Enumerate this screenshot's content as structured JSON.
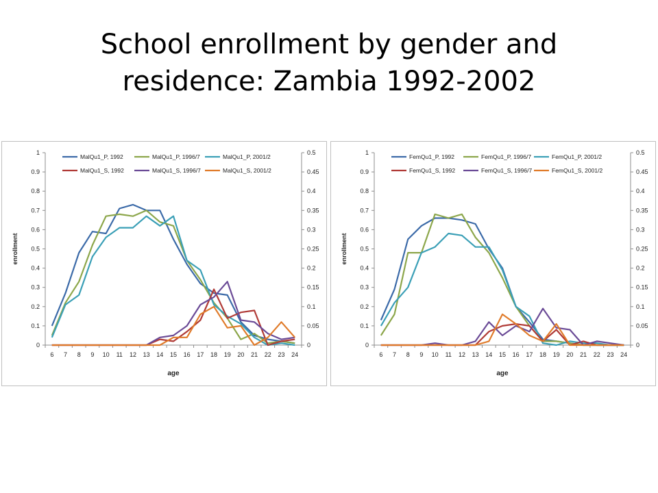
{
  "title": {
    "line1": "School enrollment by gender and",
    "line2": "residence: Zambia 1992-2002"
  },
  "chart_data": [
    {
      "type": "line",
      "xlabel": "age",
      "ylabel": "enrollment",
      "x": [
        6,
        7,
        8,
        9,
        10,
        11,
        12,
        13,
        14,
        15,
        16,
        17,
        18,
        19,
        20,
        21,
        22,
        23,
        24
      ],
      "ylim": [
        0,
        1
      ],
      "y2lim": [
        0,
        0.5
      ],
      "yticks": [
        "0",
        "0.1",
        "0.2",
        "0.3",
        "0.4",
        "0.5",
        "0.6",
        "0.7",
        "0.8",
        "0.9",
        "1"
      ],
      "y2ticks": [
        "0",
        "0.05",
        "0.1",
        "0.15",
        "0.2",
        "0.25",
        "0.3",
        "0.35",
        "0.4",
        "0.45",
        "0.5"
      ],
      "legend": "top",
      "series": [
        {
          "name": "MalQu1_P, 1992",
          "axis": "left",
          "color": "#3b6aa8",
          "values": [
            0.1,
            0.27,
            0.48,
            0.59,
            0.58,
            0.71,
            0.73,
            0.7,
            0.7,
            0.55,
            0.42,
            0.32,
            0.27,
            0.26,
            0.12,
            0.05,
            0.03,
            0.02,
            0.01
          ]
        },
        {
          "name": "MalQu1_P, 1996/7",
          "axis": "left",
          "color": "#8ca64a",
          "values": [
            0.05,
            0.22,
            0.33,
            0.52,
            0.67,
            0.68,
            0.67,
            0.7,
            0.64,
            0.62,
            0.44,
            0.34,
            0.22,
            0.14,
            0.03,
            0.06,
            0.01,
            0.02,
            0.01
          ]
        },
        {
          "name": "MalQu1_P, 2001/2",
          "axis": "left",
          "color": "#3a9fb6",
          "values": [
            0.04,
            0.21,
            0.26,
            0.46,
            0.56,
            0.61,
            0.61,
            0.67,
            0.62,
            0.67,
            0.44,
            0.39,
            0.21,
            0.15,
            0.11,
            0.04,
            0.0,
            0.01,
            0.0
          ]
        },
        {
          "name": "MalQu1_S, 1992",
          "axis": "right",
          "color": "#b03a36",
          "values": [
            0,
            0,
            0,
            0,
            0,
            0,
            0,
            0,
            0.015,
            0.01,
            0.035,
            0.065,
            0.145,
            0.07,
            0.085,
            0.09,
            0.0,
            0.01,
            0.015
          ]
        },
        {
          "name": "MalQu1_S, 1996/7",
          "axis": "right",
          "color": "#6a4a96",
          "values": [
            0,
            0,
            0,
            0,
            0,
            0,
            0,
            0,
            0.02,
            0.025,
            0.05,
            0.105,
            0.125,
            0.165,
            0.065,
            0.06,
            0.03,
            0.015,
            0.02
          ]
        },
        {
          "name": "MalQu1_S, 2001/2",
          "axis": "right",
          "color": "#e07b2a",
          "values": [
            0,
            0,
            0,
            0,
            0,
            0,
            0,
            0,
            0.0,
            0.02,
            0.02,
            0.08,
            0.1,
            0.045,
            0.05,
            0.0,
            0.02,
            0.06,
            0.02
          ]
        }
      ]
    },
    {
      "type": "line",
      "xlabel": "age",
      "ylabel": "enrollment",
      "x": [
        6,
        7,
        8,
        9,
        10,
        11,
        12,
        13,
        14,
        15,
        16,
        17,
        18,
        19,
        20,
        21,
        22,
        23,
        24
      ],
      "ylim": [
        0,
        1
      ],
      "y2lim": [
        0,
        0.5
      ],
      "yticks": [
        "0",
        "0.1",
        "0.2",
        "0.3",
        "0.4",
        "0.5",
        "0.6",
        "0.7",
        "0.8",
        "0.9",
        "1"
      ],
      "y2ticks": [
        "0",
        "0.05",
        "0.1",
        "0.15",
        "0.2",
        "0.25",
        "0.3",
        "0.35",
        "0.4",
        "0.45",
        "0.5"
      ],
      "legend": "top",
      "series": [
        {
          "name": "FemQu1_P, 1992",
          "axis": "left",
          "color": "#3b6aa8",
          "values": [
            0.13,
            0.29,
            0.55,
            0.62,
            0.66,
            0.66,
            0.65,
            0.63,
            0.5,
            0.4,
            0.2,
            0.12,
            0.03,
            0.02,
            0.01,
            0.0,
            0.0,
            0.0,
            0.0
          ]
        },
        {
          "name": "FemQu1_P, 1996/7",
          "axis": "left",
          "color": "#8ca64a",
          "values": [
            0.05,
            0.16,
            0.48,
            0.48,
            0.68,
            0.66,
            0.68,
            0.56,
            0.48,
            0.35,
            0.2,
            0.1,
            0.02,
            0.02,
            0.01,
            0.0,
            0.0,
            0.0,
            0.0
          ]
        },
        {
          "name": "FemQu1_P, 2001/2",
          "axis": "left",
          "color": "#3a9fb6",
          "values": [
            0.1,
            0.22,
            0.3,
            0.48,
            0.51,
            0.58,
            0.57,
            0.51,
            0.51,
            0.39,
            0.2,
            0.15,
            0.01,
            0.0,
            0.02,
            0.01,
            0.01,
            0.0,
            0.0
          ]
        },
        {
          "name": "FemQu1_S, 1992",
          "axis": "right",
          "color": "#b03a36",
          "values": [
            0,
            0,
            0,
            0,
            0.0,
            0.0,
            0.0,
            0.0,
            0.035,
            0.05,
            0.055,
            0.05,
            0.01,
            0.04,
            0.0,
            0.01,
            0.0,
            0.0,
            0.0
          ]
        },
        {
          "name": "FemQu1_S, 1996/7",
          "axis": "right",
          "color": "#6a4a96",
          "values": [
            0,
            0,
            0,
            0,
            0.005,
            0.0,
            0.0,
            0.01,
            0.06,
            0.025,
            0.05,
            0.035,
            0.095,
            0.045,
            0.04,
            0.0,
            0.01,
            0.005,
            0.0
          ]
        },
        {
          "name": "FemQu1_S, 2001/2",
          "axis": "right",
          "color": "#e07b2a",
          "values": [
            0,
            0,
            0,
            0,
            0,
            0,
            0,
            0,
            0.01,
            0.08,
            0.055,
            0.025,
            0.01,
            0.055,
            0.0,
            0.0,
            0.0,
            0.0,
            0.0
          ]
        }
      ]
    }
  ]
}
